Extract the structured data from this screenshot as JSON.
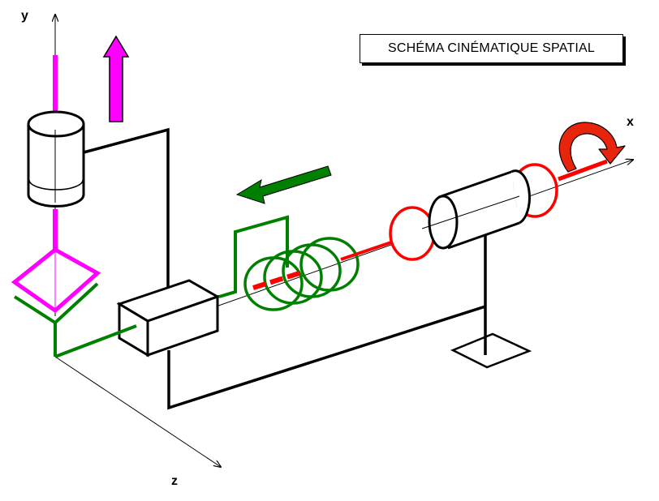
{
  "title": "SCHÉMA CINÉMATIQUE SPATIAL",
  "axes": {
    "x": "x",
    "y": "y",
    "z": "z"
  },
  "colors": {
    "frame": "#000000",
    "output_link": "#ff00ff",
    "slider_link": "#008000",
    "input_shaft": "#ff0000"
  },
  "icons": {
    "translation_up": "magenta-up-arrow-icon",
    "translation_left": "green-left-arrow-icon",
    "rotation_x": "red-curved-rotation-arrow-icon"
  }
}
